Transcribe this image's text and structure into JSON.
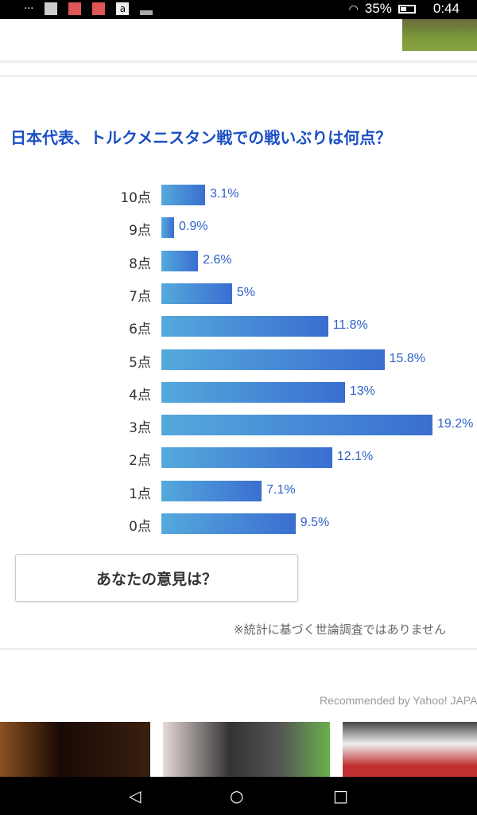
{
  "status_bar": {
    "battery": "35%",
    "time": "0:44"
  },
  "poll": {
    "title": "日本代表、トルクメニスタン戦での戦いぶりは何点？",
    "options": [
      {
        "label": "10点",
        "value": 3.1,
        "text": "3.1%"
      },
      {
        "label": "9点",
        "value": 0.9,
        "text": "0.9%"
      },
      {
        "label": "8点",
        "value": 2.6,
        "text": "2.6%"
      },
      {
        "label": "7点",
        "value": 5,
        "text": "5%"
      },
      {
        "label": "6点",
        "value": 11.8,
        "text": "11.8%"
      },
      {
        "label": "5点",
        "value": 15.8,
        "text": "15.8%"
      },
      {
        "label": "4点",
        "value": 13,
        "text": "13%"
      },
      {
        "label": "3点",
        "value": 19.2,
        "text": "19.2%"
      },
      {
        "label": "2点",
        "value": 12.1,
        "text": "12.1%"
      },
      {
        "label": "1点",
        "value": 7.1,
        "text": "7.1%"
      },
      {
        "label": "0点",
        "value": 9.5,
        "text": "9.5%"
      }
    ],
    "button": "あなたの意見は？",
    "note": "※統計に基づく世論調査ではありません"
  },
  "recommended": "Recommended by Yahoo! JAPAN",
  "colors": {
    "accent": "#1a4fc4",
    "bar_start": "#55a9dc",
    "bar_end": "#3a6ed0"
  }
}
